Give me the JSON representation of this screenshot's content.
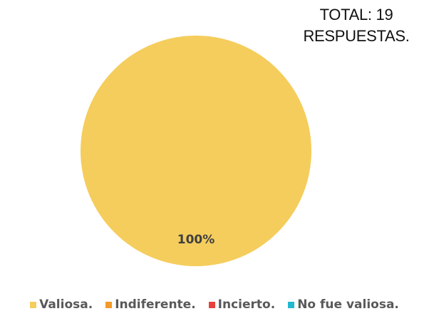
{
  "header": {
    "total_line1": "TOTAL: 19",
    "total_line2": "RESPUESTAS."
  },
  "chart_data": {
    "type": "pie",
    "title": "",
    "categories": [
      "Valiosa.",
      "Indiferente.",
      "Incierto.",
      "No fue valiosa."
    ],
    "values": [
      100,
      0,
      0,
      0
    ],
    "unit": "%",
    "data_labels": [
      "100%"
    ],
    "colors": [
      "#F5CD5C",
      "#F39A2A",
      "#E8413A",
      "#22B8D0"
    ],
    "legend_position": "bottom"
  }
}
